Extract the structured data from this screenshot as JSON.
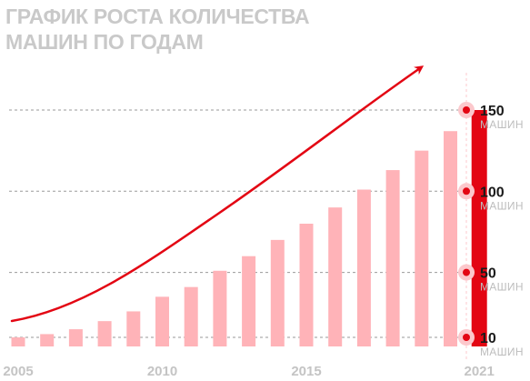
{
  "chart_data": {
    "type": "bar",
    "title_lines": [
      "ГРАФИК РОСТА КОЛИЧЕСТВА",
      "МАШИН ПО ГОДАМ"
    ],
    "x": [
      2005,
      2006,
      2007,
      2008,
      2009,
      2010,
      2011,
      2012,
      2013,
      2014,
      2015,
      2016,
      2017,
      2018,
      2019,
      2020,
      2021
    ],
    "values": [
      10,
      12,
      15,
      20,
      26,
      35,
      41,
      51,
      60,
      70,
      80,
      90,
      101,
      113,
      125,
      137,
      150
    ],
    "highlight_index": 16,
    "x_tick_labels": [
      {
        "x": 2005,
        "label": "2005"
      },
      {
        "x": 2010,
        "label": "2010"
      },
      {
        "x": 2015,
        "label": "2015"
      },
      {
        "x": 2021,
        "label": "2021"
      }
    ],
    "y_ticks": [
      {
        "value": 10,
        "label": "10",
        "unit": "МАШИН"
      },
      {
        "value": 50,
        "label": "50",
        "unit": "МАШИН"
      },
      {
        "value": 100,
        "label": "100",
        "unit": "МАШИН"
      },
      {
        "value": 150,
        "label": "150",
        "unit": "МАШИН"
      }
    ],
    "trend_arrow": true,
    "grid": "horizontal-dashed",
    "colors": {
      "bar": "#ffb3b8",
      "bar_highlight": "#e30613",
      "arrow": "#e30613",
      "grid": "#9a9a9a",
      "marker_outer": "#fcc8cc",
      "marker_inner": "#e30613",
      "title": "#c9c9c9"
    }
  }
}
